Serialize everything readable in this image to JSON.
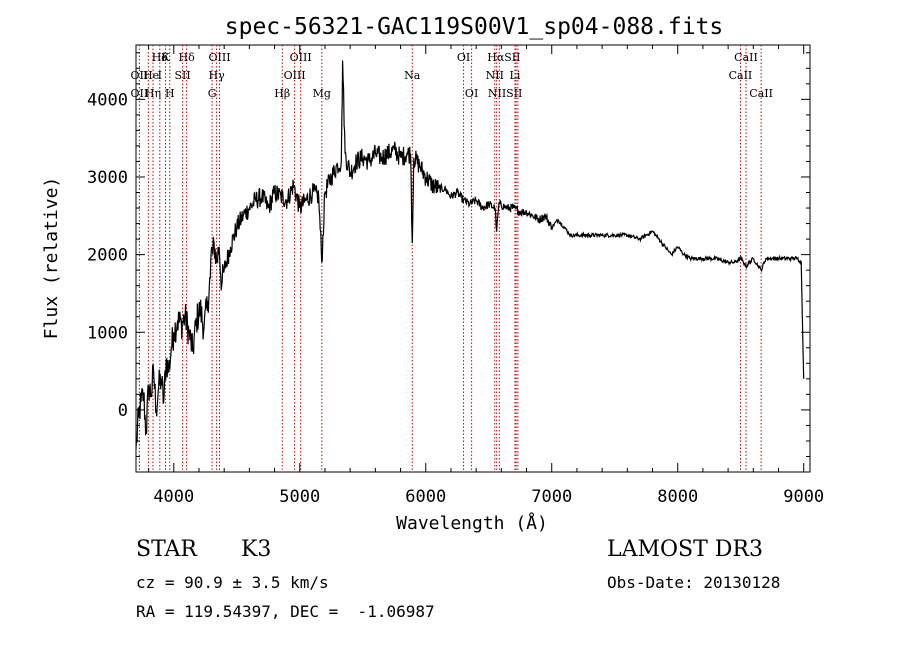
{
  "chart_data": {
    "type": "line",
    "title": "spec-56321-GAC119S00V1_sp04-088.fits",
    "xlabel": "Wavelength (Å)",
    "ylabel": "Flux (relative)",
    "xlim": [
      3700,
      9050
    ],
    "ylim": [
      -800,
      4700
    ],
    "x_ticks": [
      4000,
      5000,
      6000,
      7000,
      8000,
      9000
    ],
    "y_ticks": [
      0,
      1000,
      2000,
      3000,
      4000
    ],
    "grid": false,
    "series": [
      {
        "name": "flux",
        "x": [
          3700,
          3720,
          3740,
          3760,
          3780,
          3800,
          3820,
          3840,
          3860,
          3880,
          3900,
          3920,
          3940,
          3960,
          3980,
          4000,
          4030,
          4060,
          4090,
          4120,
          4150,
          4180,
          4210,
          4240,
          4270,
          4290,
          4300,
          4310,
          4320,
          4340,
          4360,
          4380,
          4400,
          4450,
          4500,
          4550,
          4600,
          4650,
          4700,
          4750,
          4800,
          4850,
          4900,
          4950,
          5000,
          5050,
          5100,
          5150,
          5175,
          5200,
          5250,
          5300,
          5330,
          5340,
          5360,
          5400,
          5450,
          5500,
          5550,
          5600,
          5650,
          5700,
          5750,
          5800,
          5850,
          5880,
          5893,
          5905,
          5950,
          6000,
          6050,
          6100,
          6150,
          6200,
          6250,
          6300,
          6350,
          6400,
          6450,
          6500,
          6550,
          6563,
          6580,
          6650,
          6700,
          6750,
          6800,
          6850,
          6900,
          6950,
          7000,
          7050,
          7100,
          7150,
          7200,
          7300,
          7400,
          7500,
          7600,
          7700,
          7800,
          7850,
          7900,
          7950,
          8000,
          8050,
          8100,
          8150,
          8200,
          8300,
          8400,
          8450,
          8500,
          8542,
          8600,
          8662,
          8700,
          8800,
          8900,
          8950,
          8980,
          9000
        ],
        "values": [
          -500,
          -100,
          100,
          200,
          -300,
          300,
          200,
          500,
          0,
          300,
          400,
          100,
          650,
          500,
          800,
          1000,
          1150,
          1100,
          1200,
          1000,
          750,
          1150,
          1300,
          1050,
          1400,
          1700,
          2100,
          2000,
          2150,
          1900,
          2100,
          1600,
          1800,
          2100,
          2350,
          2500,
          2600,
          2700,
          2750,
          2600,
          2800,
          2750,
          2700,
          2900,
          2600,
          2700,
          2800,
          2750,
          1900,
          2800,
          3000,
          3150,
          3200,
          4500,
          3300,
          3050,
          3200,
          3250,
          3200,
          3300,
          3250,
          3300,
          3350,
          3250,
          3300,
          3300,
          2150,
          3250,
          3150,
          3000,
          2900,
          2850,
          2850,
          2750,
          2800,
          2700,
          2650,
          2700,
          2600,
          2650,
          2600,
          2300,
          2650,
          2600,
          2600,
          2550,
          2550,
          2500,
          2450,
          2500,
          2350,
          2450,
          2350,
          2250,
          2250,
          2250,
          2250,
          2250,
          2250,
          2200,
          2300,
          2200,
          2100,
          2000,
          2100,
          2000,
          1950,
          1950,
          1950,
          1950,
          1900,
          1900,
          1950,
          1850,
          1950,
          1800,
          1950,
          1950,
          1950,
          1950,
          1900,
          400
        ]
      }
    ],
    "lines": [
      {
        "label": "Hδ",
        "wl": 3889,
        "row": 0
      },
      {
        "label": "K",
        "wl": 3934,
        "row": 0
      },
      {
        "label": "Hδ",
        "wl": 4102,
        "row": 0
      },
      {
        "label": "OIII",
        "wl": 4363,
        "row": 0
      },
      {
        "label": "OIII",
        "wl": 5007,
        "row": 0
      },
      {
        "label": "OI",
        "wl": 6300,
        "row": 0
      },
      {
        "label": "HαSII",
        "wl": 6620,
        "row": 0
      },
      {
        "label": "CaII",
        "wl": 8542,
        "row": 0
      },
      {
        "label": "OII",
        "wl": 3727,
        "row": 1
      },
      {
        "label": "He",
        "wl": 3820,
        "row": 1
      },
      {
        "label": "I",
        "wl": 3889,
        "row": 1
      },
      {
        "label": "SII",
        "wl": 4070,
        "row": 1
      },
      {
        "label": "Hγ",
        "wl": 4340,
        "row": 1
      },
      {
        "label": "OIII",
        "wl": 4959,
        "row": 1
      },
      {
        "label": "Na",
        "wl": 5893,
        "row": 1
      },
      {
        "label": "NII",
        "wl": 6548,
        "row": 1
      },
      {
        "label": "Li",
        "wl": 6708,
        "row": 1
      },
      {
        "label": "CaII",
        "wl": 8498,
        "row": 1
      },
      {
        "label": "OII",
        "wl": 3727,
        "row": 2
      },
      {
        "label": "Hη",
        "wl": 3835,
        "row": 2
      },
      {
        "label": "H",
        "wl": 3968,
        "row": 2
      },
      {
        "label": "G",
        "wl": 4304,
        "row": 2
      },
      {
        "label": "Hβ",
        "wl": 4861,
        "row": 2
      },
      {
        "label": "Mg",
        "wl": 5175,
        "row": 2
      },
      {
        "label": "OI",
        "wl": 6364,
        "row": 2
      },
      {
        "label": "NIISII",
        "wl": 6630,
        "row": 2
      },
      {
        "label": "CaII",
        "wl": 8662,
        "row": 2
      }
    ],
    "marker_wavelengths": [
      3727,
      3798,
      3835,
      3889,
      3934,
      3968,
      4070,
      4102,
      4304,
      4340,
      4363,
      4861,
      4959,
      5007,
      5175,
      5893,
      6300,
      6364,
      6548,
      6563,
      6584,
      6708,
      6717,
      6731,
      8498,
      8542,
      8662
    ]
  },
  "info": {
    "object_type": "STAR",
    "subclass": "K3",
    "survey": "LAMOST DR3",
    "redshift": "cz = 90.9 ± 3.5 km/s",
    "obs_date": "Obs-Date: 20130128",
    "coords": "RA = 119.54397, DEC =  -1.06987"
  }
}
